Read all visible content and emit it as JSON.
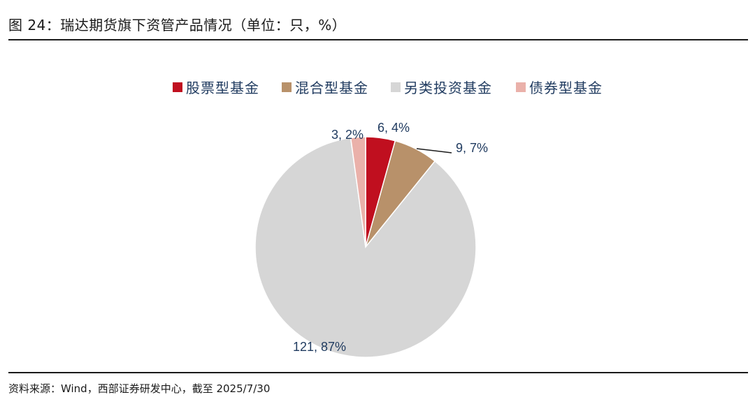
{
  "header": {
    "title": "图 24：瑞达期货旗下资管产品情况（单位：只，%）"
  },
  "footer": {
    "source": "资料来源：Wind，西部证券研发中心，截至 2025/7/30"
  },
  "chart_data": {
    "type": "pie",
    "series": [
      {
        "name": "股票型基金",
        "value": 6,
        "percent": 4,
        "label": "6, 4%",
        "color": "#c00f1f"
      },
      {
        "name": "混合型基金",
        "value": 9,
        "percent": 7,
        "label": "9, 7%",
        "color": "#b8916a"
      },
      {
        "name": "另类投资基金",
        "value": 121,
        "percent": 87,
        "label": "121, 87%",
        "color": "#d6d6d6"
      },
      {
        "name": "债券型基金",
        "value": 3,
        "percent": 2,
        "label": "3, 2%",
        "color": "#eab1aa"
      }
    ],
    "legend_position": "top"
  }
}
